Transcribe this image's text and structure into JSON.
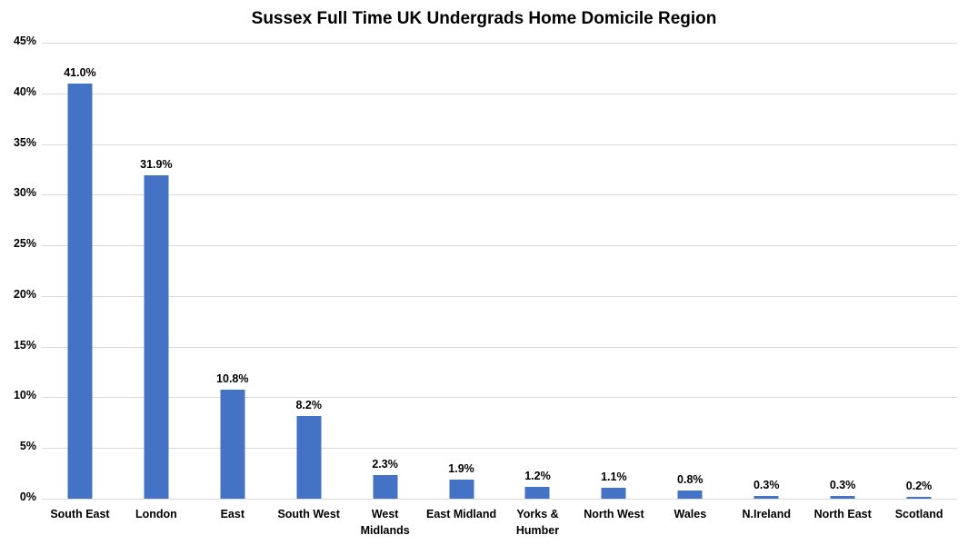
{
  "chart_data": {
    "type": "bar",
    "title": "Sussex Full Time UK Undergrads Home Domicile Region",
    "categories": [
      "South East",
      "London",
      "East",
      "South West",
      "West\nMidlands",
      "East Midland",
      "Yorks &\nHumber",
      "North West",
      "Wales",
      "N.Ireland",
      "North East",
      "Scotland"
    ],
    "values": [
      41.0,
      31.9,
      10.8,
      8.2,
      2.3,
      1.9,
      1.2,
      1.1,
      0.8,
      0.3,
      0.3,
      0.2
    ],
    "data_labels": [
      "41.0%",
      "31.9%",
      "10.8%",
      "8.2%",
      "2.3%",
      "1.9%",
      "1.2%",
      "1.1%",
      "0.8%",
      "0.3%",
      "0.3%",
      "0.2%"
    ],
    "xlabel": "",
    "ylabel": "",
    "ylim": [
      0,
      45
    ],
    "y_tick_step": 5,
    "y_tick_labels": [
      "0%",
      "5%",
      "10%",
      "15%",
      "20%",
      "25%",
      "30%",
      "35%",
      "40%",
      "45%"
    ],
    "grid": true,
    "legend": false,
    "bar_color": "#4472C4",
    "gridline_color": "#D9D9D9",
    "text_color": "#000000",
    "background_color": "#FFFFFF"
  }
}
